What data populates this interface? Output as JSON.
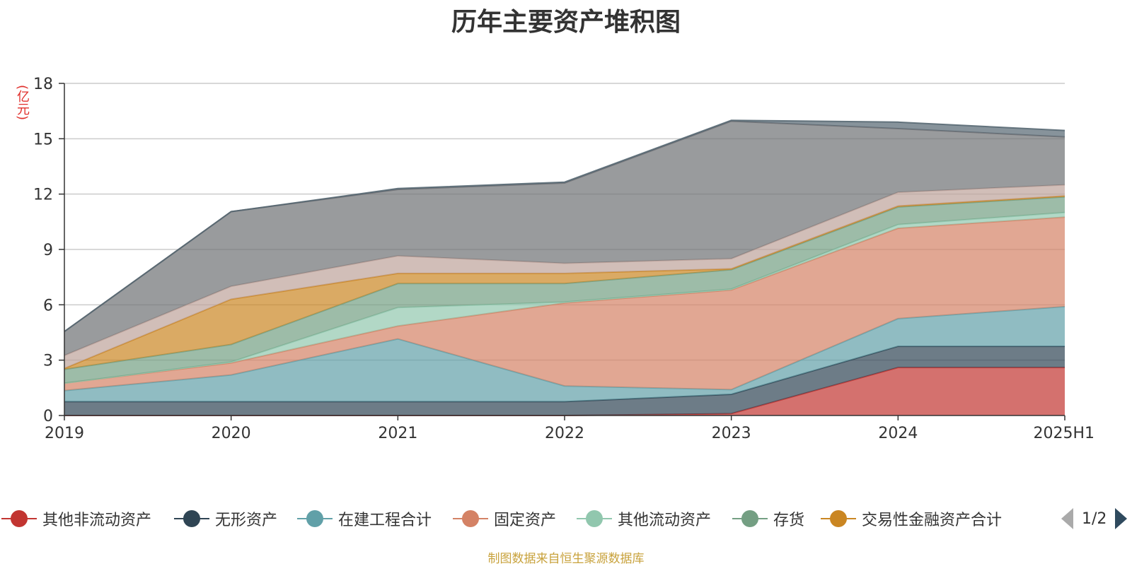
{
  "chart_data": {
    "type": "area",
    "stacked": true,
    "title": "历年主要资产堆积图",
    "ylabel": "(亿元)",
    "categories": [
      "2019",
      "2020",
      "2021",
      "2022",
      "2023",
      "2024",
      "2025H1"
    ],
    "ylim": [
      0,
      18
    ],
    "yticks": [
      0,
      3,
      6,
      9,
      12,
      15,
      18
    ],
    "grid": true,
    "legend_position": "bottom",
    "series": [
      {
        "name": "其他非流动资产",
        "color": "#c23531",
        "values": [
          0.0,
          0.0,
          0.0,
          0.0,
          0.1,
          2.6,
          2.6
        ]
      },
      {
        "name": "无形资产",
        "color": "#2f4554",
        "values": [
          0.75,
          0.75,
          0.75,
          0.75,
          1.05,
          1.15,
          1.15
        ]
      },
      {
        "name": "在建工程合计",
        "color": "#61a0a8",
        "values": [
          0.6,
          1.45,
          3.4,
          0.85,
          0.25,
          1.5,
          2.15
        ]
      },
      {
        "name": "固定资产",
        "color": "#d48265",
        "values": [
          0.4,
          0.65,
          0.7,
          4.5,
          5.4,
          4.9,
          4.85
        ]
      },
      {
        "name": "其他流动资产",
        "color": "#91c7ae",
        "values": [
          0.0,
          0.05,
          1.0,
          0.05,
          0.05,
          0.2,
          0.25
        ]
      },
      {
        "name": "存货",
        "color": "#749f83",
        "values": [
          0.75,
          0.95,
          1.3,
          1.0,
          1.05,
          0.95,
          0.85
        ]
      },
      {
        "name": "交易性金融资产合计",
        "color": "#ca8622",
        "values": [
          0.05,
          2.45,
          0.55,
          0.55,
          0.05,
          0.05,
          0.05
        ]
      },
      {
        "name": "",
        "color": "#bda29a",
        "values": [
          0.7,
          0.7,
          0.95,
          0.55,
          0.55,
          0.75,
          0.6
        ]
      },
      {
        "name": "",
        "color": "#6e7074",
        "values": [
          1.3,
          4.05,
          3.6,
          4.35,
          7.45,
          3.45,
          2.6
        ]
      },
      {
        "name": "",
        "color": "#546570",
        "values": [
          0.0,
          0.0,
          0.05,
          0.05,
          0.05,
          0.35,
          0.35
        ]
      }
    ]
  },
  "legend": {
    "items": [
      {
        "label": "其他非流动资产",
        "color": "#c23531"
      },
      {
        "label": "无形资产",
        "color": "#2f4554"
      },
      {
        "label": "在建工程合计",
        "color": "#61a0a8"
      },
      {
        "label": "固定资产",
        "color": "#d48265"
      },
      {
        "label": "其他流动资产",
        "color": "#91c7ae"
      },
      {
        "label": "存货",
        "color": "#749f83"
      },
      {
        "label": "交易性金融资产合计",
        "color": "#ca8622"
      }
    ],
    "page_text": "1/2"
  },
  "footer": {
    "source_note": "制图数据来自恒生聚源数据库"
  }
}
